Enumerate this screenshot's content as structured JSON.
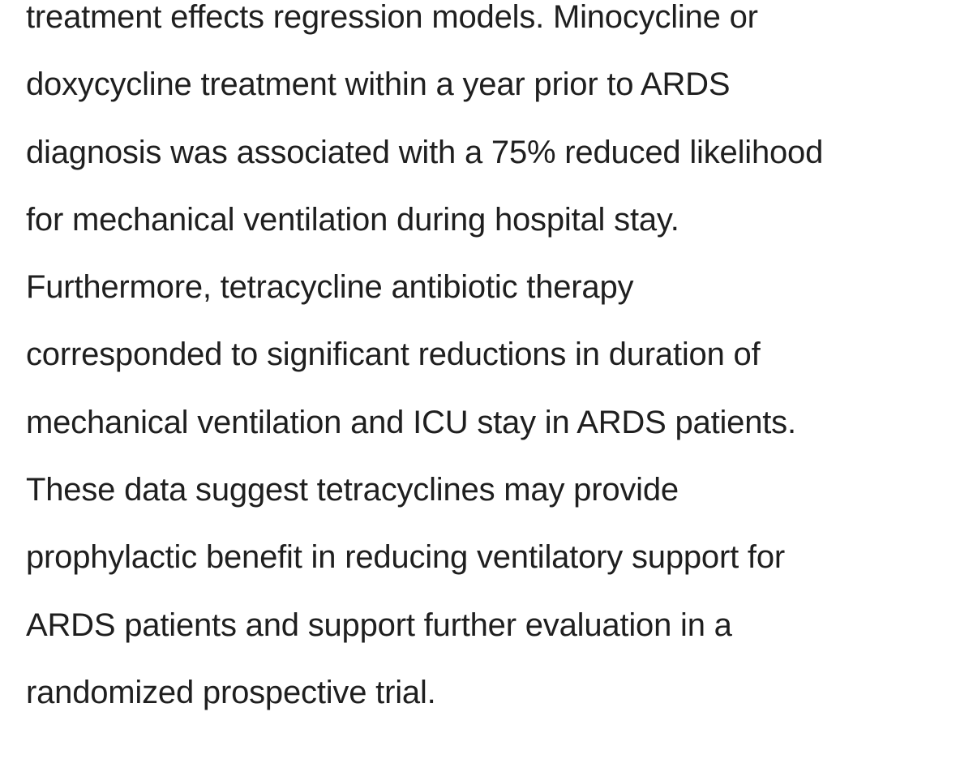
{
  "abstract": {
    "lines": [
      "treatment effects regression models. Minocycline or",
      "doxycycline treatment within a year prior to ARDS",
      "diagnosis was associated with a 75% reduced likelihood",
      "for mechanical ventilation during hospital stay.",
      "Furthermore, tetracycline antibiotic therapy",
      "corresponded to significant reductions in duration of",
      "mechanical ventilation and ICU stay in ARDS patients.",
      "These data suggest tetracyclines may provide",
      "prophylactic benefit in reducing ventilatory support for",
      "ARDS patients and support further evaluation in a",
      "randomized prospective trial."
    ]
  }
}
